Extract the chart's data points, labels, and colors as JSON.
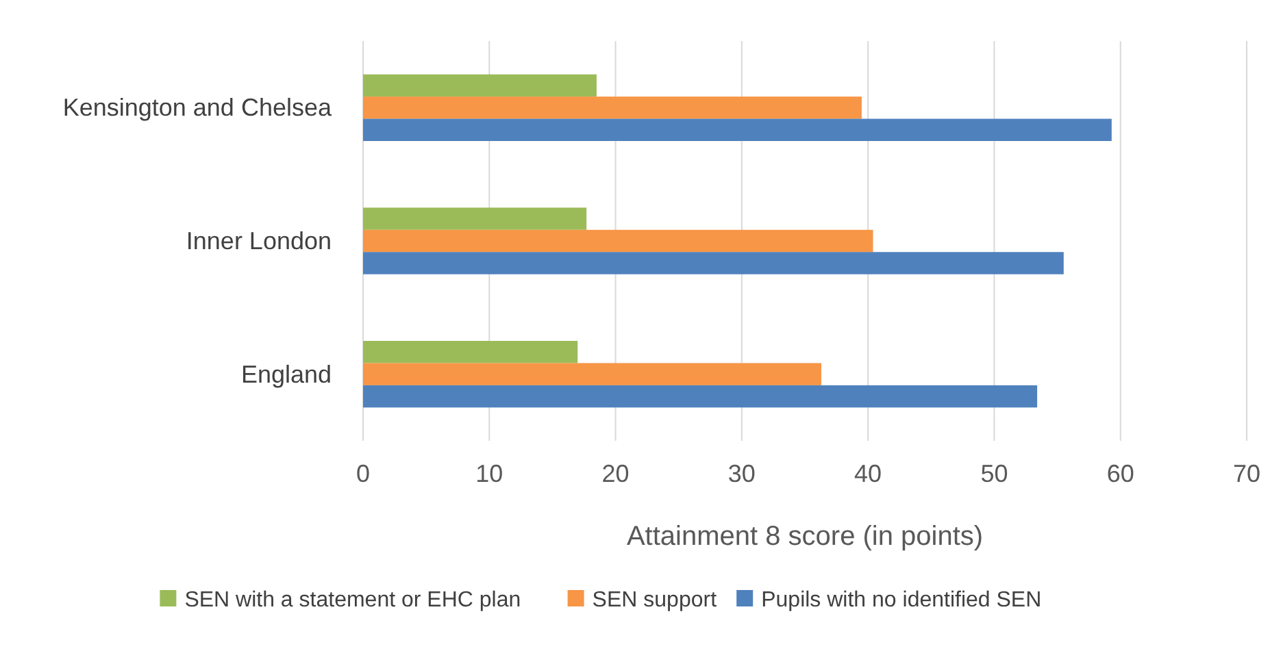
{
  "chart_data": {
    "type": "bar",
    "orientation": "horizontal",
    "xlabel": "Attainment 8 score (in points)",
    "categories": [
      "Kensington and Chelsea",
      "Inner London",
      "England"
    ],
    "series": [
      {
        "name": "SEN with a statement or EHC plan",
        "color": "#9bbb59",
        "values": [
          18.5,
          17.7,
          17.0
        ]
      },
      {
        "name": "SEN support",
        "color": "#f79646",
        "values": [
          39.5,
          40.4,
          36.3
        ]
      },
      {
        "name": "Pupils with no identified SEN",
        "color": "#4f81bd",
        "values": [
          59.3,
          55.5,
          53.4
        ]
      }
    ],
    "xlim": [
      0,
      70
    ],
    "xticks": [
      0,
      10,
      20,
      30,
      40,
      50,
      60,
      70
    ],
    "grid": "x",
    "legend": "bottom"
  }
}
